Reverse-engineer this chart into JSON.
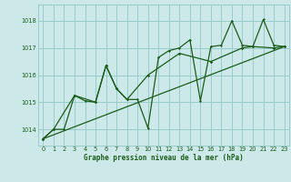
{
  "title": "Graphe pression niveau de la mer (hPa)",
  "xlim": [
    -0.5,
    23.5
  ],
  "ylim": [
    1013.4,
    1018.6
  ],
  "yticks": [
    1014,
    1015,
    1016,
    1017,
    1018
  ],
  "xticks": [
    0,
    1,
    2,
    3,
    4,
    5,
    6,
    7,
    8,
    9,
    10,
    11,
    12,
    13,
    14,
    15,
    16,
    17,
    18,
    19,
    20,
    21,
    22,
    23
  ],
  "bg_color": "#cce8e8",
  "grid_color": "#99cccc",
  "line_color": "#1a5c1a",
  "series1_x": [
    0,
    1,
    2,
    3,
    4,
    5,
    6,
    7,
    8,
    9,
    10,
    11,
    12,
    13,
    14,
    15,
    16,
    17,
    18,
    19,
    20,
    21,
    22,
    23
  ],
  "series1_y": [
    1013.65,
    1014.0,
    1014.0,
    1015.25,
    1015.05,
    1015.0,
    1016.35,
    1015.5,
    1015.1,
    1015.1,
    1014.05,
    1016.65,
    1016.9,
    1017.0,
    1017.3,
    1015.05,
    1017.05,
    1017.1,
    1018.0,
    1017.1,
    1017.05,
    1018.05,
    1017.1,
    1017.05
  ],
  "series2_x": [
    0,
    1,
    3,
    5,
    6,
    7,
    8,
    10,
    13,
    16,
    19,
    20,
    22,
    23
  ],
  "series2_y": [
    1013.65,
    1014.0,
    1015.25,
    1015.0,
    1016.35,
    1015.5,
    1015.1,
    1016.0,
    1016.8,
    1016.5,
    1017.0,
    1017.05,
    1017.0,
    1017.05
  ],
  "series3_x": [
    0,
    23
  ],
  "series3_y": [
    1013.65,
    1017.05
  ]
}
